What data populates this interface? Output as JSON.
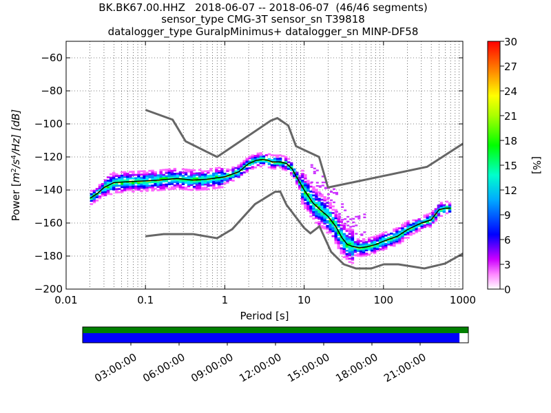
{
  "title_lines": [
    "BK.BK67.00.HHZ   2018-06-07 -- 2018-06-07  (46/46 segments)",
    "sensor_type CMG-3T sensor_sn T39818",
    "datalogger_type GuralpMinimus+ datalogger_sn MINP-DF58"
  ],
  "chart_data": {
    "type": "heatmap",
    "xlabel": "Period [s]",
    "ylabel": "Power [m²/s⁴/Hz] [dB]",
    "ylabel_parts": {
      "prefix": "Power [",
      "unit": "m",
      "e1": "2",
      "mid": "/s",
      "e2": "4",
      "suffix": "/Hz] [dB]"
    },
    "xscale": "log",
    "xlim": [
      0.01,
      1000
    ],
    "ylim": [
      -200,
      -50
    ],
    "x_ticks": [
      0.01,
      0.1,
      1,
      10,
      100,
      1000
    ],
    "x_tick_labels": [
      "0.01",
      "0.1",
      "1",
      "10",
      "100",
      "1000"
    ],
    "y_ticks": [
      -200,
      -180,
      -160,
      -140,
      -120,
      -100,
      -80,
      -60
    ],
    "y_tick_labels": [
      "−200",
      "−180",
      "−160",
      "−140",
      "−120",
      "−100",
      "−80",
      "−60"
    ],
    "grid": "dotted",
    "colorbar": {
      "label": "[%]",
      "range": [
        0,
        30
      ],
      "ticks": [
        0,
        3,
        6,
        9,
        12,
        15,
        18,
        21,
        24,
        27,
        30
      ],
      "tick_labels": [
        "0",
        "3",
        "6",
        "9",
        "12",
        "15",
        "18",
        "21",
        "24",
        "27",
        "30"
      ]
    },
    "noise_models": [
      {
        "name": "NHNM",
        "color": "#666666",
        "points": [
          [
            0.1,
            -91.5
          ],
          [
            0.22,
            -97.4
          ],
          [
            0.32,
            -110.5
          ],
          [
            0.8,
            -120
          ],
          [
            3.8,
            -98
          ],
          [
            4.6,
            -96.5
          ],
          [
            6.3,
            -101
          ],
          [
            7.9,
            -113.5
          ],
          [
            15.4,
            -120
          ],
          [
            20,
            -138.5
          ],
          [
            354,
            -126
          ],
          [
            1000,
            -112
          ]
        ]
      },
      {
        "name": "NLNM",
        "color": "#666666",
        "points": [
          [
            0.1,
            -168
          ],
          [
            0.17,
            -166.7
          ],
          [
            0.4,
            -166.7
          ],
          [
            0.8,
            -169.2
          ],
          [
            1.24,
            -163.7
          ],
          [
            2.4,
            -148.6
          ],
          [
            4.3,
            -141.1
          ],
          [
            5,
            -141
          ],
          [
            6,
            -149
          ],
          [
            10,
            -163
          ],
          [
            12,
            -166.2
          ],
          [
            15.6,
            -162
          ],
          [
            21.9,
            -177.5
          ],
          [
            31.6,
            -185
          ],
          [
            45,
            -187.5
          ],
          [
            70,
            -187.5
          ],
          [
            101,
            -185
          ],
          [
            154,
            -185
          ],
          [
            328,
            -187.5
          ],
          [
            600,
            -184.5
          ],
          [
            1000,
            -178.5
          ]
        ]
      }
    ],
    "median": {
      "color": "#000000",
      "points": [
        [
          0.02,
          -145
        ],
        [
          0.025,
          -142
        ],
        [
          0.03,
          -138.5
        ],
        [
          0.04,
          -135.5
        ],
        [
          0.06,
          -135
        ],
        [
          0.1,
          -134.5
        ],
        [
          0.15,
          -134
        ],
        [
          0.25,
          -133
        ],
        [
          0.4,
          -134
        ],
        [
          0.6,
          -133.5
        ],
        [
          1,
          -132
        ],
        [
          1.5,
          -129
        ],
        [
          2,
          -124
        ],
        [
          2.5,
          -122
        ],
        [
          3,
          -121.5
        ],
        [
          3.5,
          -122
        ],
        [
          4,
          -123
        ],
        [
          5,
          -123
        ],
        [
          6,
          -124
        ],
        [
          7,
          -127
        ],
        [
          8,
          -132
        ],
        [
          10,
          -140
        ],
        [
          13,
          -148
        ],
        [
          16,
          -152
        ],
        [
          20,
          -156
        ],
        [
          25,
          -162
        ],
        [
          30,
          -169
        ],
        [
          35,
          -173
        ],
        [
          40,
          -174
        ],
        [
          50,
          -175
        ],
        [
          60,
          -174.5
        ],
        [
          80,
          -173
        ],
        [
          100,
          -171
        ],
        [
          150,
          -168
        ],
        [
          200,
          -164
        ],
        [
          300,
          -160
        ],
        [
          400,
          -158
        ],
        [
          500,
          -152
        ],
        [
          600,
          -151
        ],
        [
          700,
          -151
        ]
      ]
    },
    "time_axis": {
      "labels": [
        "03:00:00",
        "06:00:00",
        "09:00:00",
        "12:00:00",
        "15:00:00",
        "18:00:00",
        "21:00:00"
      ],
      "hours": [
        3,
        6,
        9,
        12,
        15,
        18,
        21
      ],
      "span_hours": 24,
      "data_coverage_color": "#008000",
      "psd_coverage_color": "#0000ff",
      "psd_coverage_fraction": 0.977
    }
  }
}
